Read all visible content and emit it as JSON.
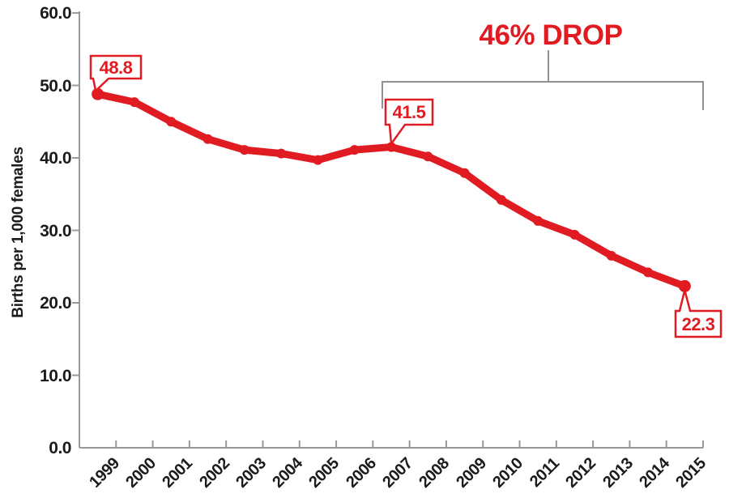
{
  "colors": {
    "accent_red": "#e11b22",
    "axis_gray": "#98999b",
    "bracket_gray": "#8f9193",
    "text_black": "#1b1b1b",
    "background": "#ffffff"
  },
  "figure": {
    "annotation_label": "46% DROP",
    "callouts": [
      {
        "year": "1999",
        "label": "48.8"
      },
      {
        "year": "2007",
        "label": "41.5"
      },
      {
        "year": "2015",
        "label": "22.3"
      }
    ]
  },
  "chart_data": {
    "type": "line",
    "title": "",
    "xlabel": "",
    "ylabel": "Births per 1,000 females",
    "categories": [
      "1999",
      "2000",
      "2001",
      "2002",
      "2003",
      "2004",
      "2005",
      "2006",
      "2007",
      "2008",
      "2009",
      "2010",
      "2011",
      "2012",
      "2013",
      "2014",
      "2015"
    ],
    "series": [
      {
        "name": "Births per 1,000 females",
        "values": [
          48.8,
          47.7,
          45.0,
          42.6,
          41.1,
          40.6,
          39.7,
          41.1,
          41.5,
          40.2,
          37.9,
          34.2,
          31.3,
          29.4,
          26.5,
          24.2,
          22.3
        ]
      }
    ],
    "ylim": [
      0,
      60
    ],
    "ytick_labels": [
      "0.0",
      "10.0",
      "20.0",
      "30.0",
      "40.0",
      "50.0",
      "60.0"
    ],
    "grid": false,
    "legend": "none",
    "annotations": {
      "drop_label": "46% DROP",
      "drop_span_years": [
        "2007",
        "2015"
      ],
      "point_labels": [
        {
          "year": "1999",
          "value": 48.8,
          "label": "48.8"
        },
        {
          "year": "2007",
          "value": 41.5,
          "label": "41.5"
        },
        {
          "year": "2015",
          "value": 22.3,
          "label": "22.3"
        }
      ]
    }
  }
}
